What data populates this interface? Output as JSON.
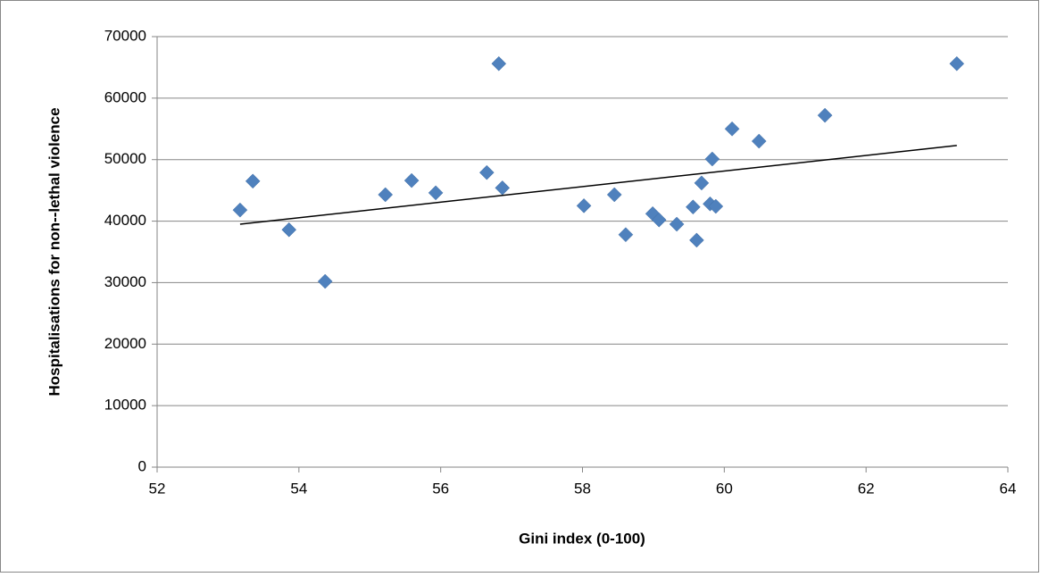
{
  "chart_data": {
    "type": "scatter",
    "x_label": "Gini index (0-100)",
    "y_label": "Hospitalisations for non--lethal violence",
    "series": [
      {
        "color": "#4f81bd",
        "x": [
          53.17,
          53.35,
          53.86,
          54.37,
          55.22,
          55.59,
          55.93,
          56.65,
          56.82,
          56.87,
          58.02,
          58.45,
          58.61,
          58.99,
          59.08,
          59.33,
          59.56,
          59.61,
          59.68,
          59.8,
          59.83,
          59.88,
          60.11,
          60.49,
          61.42,
          63.28
        ],
        "values": [
          41800,
          46500,
          38600,
          30200,
          44300,
          46600,
          44600,
          47900,
          65600,
          45400,
          42500,
          44300,
          37800,
          41200,
          40200,
          39500,
          42300,
          36900,
          46200,
          42800,
          50100,
          42400,
          55000,
          53000,
          57200,
          65600
        ]
      }
    ],
    "trendline": {
      "color": "#000000",
      "x": [
        53.17,
        63.28
      ],
      "values": [
        39500,
        52300
      ]
    },
    "xlim": [
      52,
      64
    ],
    "xticks": [
      52,
      54,
      56,
      58,
      60,
      62,
      64
    ],
    "ylim": [
      0,
      70000
    ],
    "yticks": [
      0,
      10000,
      20000,
      30000,
      40000,
      50000,
      60000,
      70000
    ],
    "grid": true
  }
}
